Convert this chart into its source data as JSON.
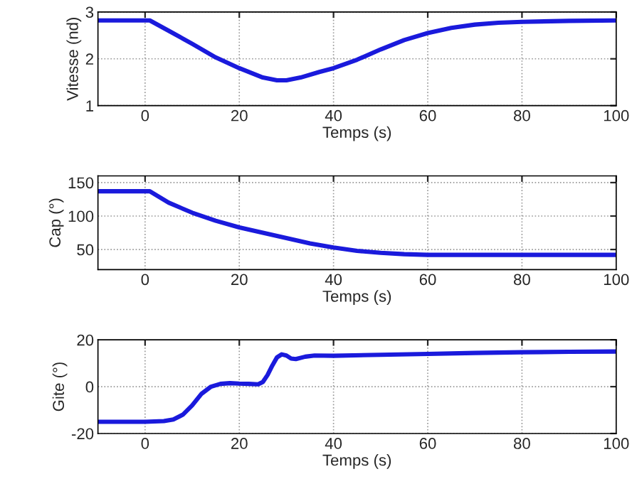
{
  "chart_data": [
    {
      "type": "line",
      "xlabel": "Temps (s)",
      "ylabel": "Vitesse (nd)",
      "xlim": [
        -10,
        100
      ],
      "xticks": [
        0,
        20,
        40,
        60,
        80,
        100
      ],
      "ylim": [
        1,
        3
      ],
      "yticks": [
        1,
        2,
        3
      ],
      "grid": true,
      "legend": false,
      "series": [
        {
          "color": "#1a1adc",
          "x": [
            -10,
            0,
            1,
            5,
            10,
            15,
            20,
            25,
            28,
            30,
            33,
            37,
            40,
            45,
            50,
            55,
            60,
            65,
            70,
            75,
            80,
            90,
            100
          ],
          "values": [
            2.82,
            2.82,
            2.82,
            2.6,
            2.32,
            2.03,
            1.8,
            1.6,
            1.54,
            1.54,
            1.6,
            1.72,
            1.8,
            1.98,
            2.2,
            2.4,
            2.55,
            2.66,
            2.73,
            2.77,
            2.79,
            2.81,
            2.82
          ]
        }
      ]
    },
    {
      "type": "line",
      "xlabel": "Temps (s)",
      "ylabel": "Cap (°)",
      "xlim": [
        -10,
        100
      ],
      "xticks": [
        0,
        20,
        40,
        60,
        80,
        100
      ],
      "ylim": [
        20,
        160
      ],
      "yticks": [
        50,
        100,
        150
      ],
      "grid": true,
      "legend": false,
      "series": [
        {
          "color": "#1a1adc",
          "x": [
            -10,
            0,
            1,
            5,
            10,
            15,
            20,
            25,
            30,
            35,
            40,
            45,
            50,
            55,
            60,
            70,
            80,
            90,
            100
          ],
          "values": [
            137,
            137,
            137,
            120,
            105,
            93,
            83,
            75,
            67,
            59,
            53,
            48,
            45,
            43,
            42,
            42,
            42,
            42,
            42
          ]
        }
      ]
    },
    {
      "type": "line",
      "xlabel": "Temps (s)",
      "ylabel": "Gite (°)",
      "xlim": [
        -10,
        100
      ],
      "xticks": [
        0,
        20,
        40,
        60,
        80,
        100
      ],
      "ylim": [
        -20,
        20
      ],
      "yticks": [
        -20,
        0,
        20
      ],
      "grid": true,
      "legend": false,
      "series": [
        {
          "color": "#1a1adc",
          "x": [
            -10,
            0,
            4,
            6,
            8,
            10,
            12,
            14,
            16,
            18,
            20,
            22,
            24,
            25,
            26,
            27,
            28,
            29,
            30,
            31,
            32,
            34,
            36,
            40,
            50,
            60,
            70,
            80,
            90,
            100
          ],
          "values": [
            -15,
            -15,
            -14.7,
            -14,
            -12,
            -8,
            -3,
            0,
            1.2,
            1.5,
            1.3,
            1.2,
            1,
            2,
            5,
            9,
            12.5,
            13.8,
            13.3,
            12,
            11.8,
            12.8,
            13.3,
            13.2,
            13.6,
            14,
            14.4,
            14.7,
            14.9,
            15
          ]
        }
      ]
    }
  ]
}
